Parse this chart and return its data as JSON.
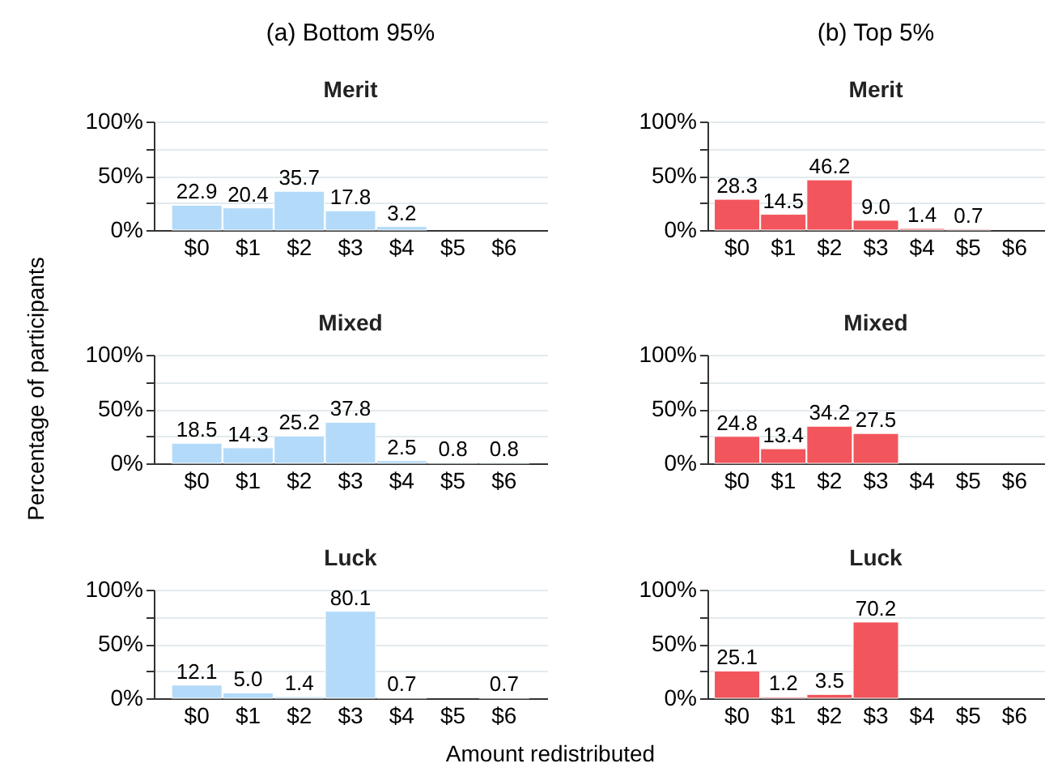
{
  "chart_data": [
    {
      "type": "bar",
      "title": "Merit",
      "annotations": [
        "(a) Bottom 95%"
      ],
      "categories": [
        "$0",
        "$1",
        "$2",
        "$3",
        "$4",
        "$5",
        "$6"
      ],
      "values": [
        22.9,
        20.4,
        35.7,
        17.8,
        3.2,
        null,
        null
      ],
      "color": "#b3dbf9",
      "data_labels": true,
      "ylim": [
        0,
        100
      ],
      "yticks": [
        {
          "value": 0,
          "label": "0%"
        },
        {
          "value": 25,
          "label": null
        },
        {
          "value": 50,
          "label": "50%"
        },
        {
          "value": 75,
          "label": null
        },
        {
          "value": 100,
          "label": "100%"
        }
      ],
      "grid": "y"
    },
    {
      "type": "bar",
      "title": "Merit",
      "annotations": [
        "(b) Top 5%"
      ],
      "categories": [
        "$0",
        "$1",
        "$2",
        "$3",
        "$4",
        "$5",
        "$6"
      ],
      "values": [
        28.3,
        14.5,
        46.2,
        9.0,
        1.4,
        0.7,
        null
      ],
      "color": "#f2555c",
      "value_labels": [
        "28.3",
        "14.5",
        "46.2",
        "9.0",
        "1.4",
        "0.7",
        null
      ],
      "ylim": [
        0,
        100
      ],
      "yticks": [
        {
          "value": 0,
          "label": "0%"
        },
        {
          "value": 25,
          "label": null
        },
        {
          "value": 50,
          "label": "50%"
        },
        {
          "value": 75,
          "label": null
        },
        {
          "value": 100,
          "label": "100%"
        }
      ],
      "grid": "y"
    },
    {
      "type": "bar",
      "title": "Mixed",
      "ylabel": "Percentage of participants",
      "categories": [
        "$0",
        "$1",
        "$2",
        "$3",
        "$4",
        "$5",
        "$6"
      ],
      "values": [
        18.5,
        14.3,
        25.2,
        37.8,
        2.5,
        0.8,
        0.8
      ],
      "color": "#b3dbf9",
      "data_labels": true,
      "ylim": [
        0,
        100
      ],
      "yticks": [
        {
          "value": 0,
          "label": "0%"
        },
        {
          "value": 25,
          "label": null
        },
        {
          "value": 50,
          "label": "50%"
        },
        {
          "value": 75,
          "label": null
        },
        {
          "value": 100,
          "label": "100%"
        }
      ],
      "grid": "y"
    },
    {
      "type": "bar",
      "title": "Mixed",
      "categories": [
        "$0",
        "$1",
        "$2",
        "$3",
        "$4",
        "$5",
        "$6"
      ],
      "values": [
        24.8,
        13.4,
        34.2,
        27.5,
        null,
        null,
        null
      ],
      "color": "#f2555c",
      "data_labels": true,
      "ylim": [
        0,
        100
      ],
      "yticks": [
        {
          "value": 0,
          "label": "0%"
        },
        {
          "value": 25,
          "label": null
        },
        {
          "value": 50,
          "label": "50%"
        },
        {
          "value": 75,
          "label": null
        },
        {
          "value": 100,
          "label": "100%"
        }
      ],
      "grid": "y"
    },
    {
      "type": "bar",
      "title": "Luck",
      "xlabel": "Amount redistributed",
      "categories": [
        "$0",
        "$1",
        "$2",
        "$3",
        "$4",
        "$5",
        "$6"
      ],
      "values": [
        12.1,
        5.0,
        1.4,
        80.1,
        0.7,
        null,
        0.7
      ],
      "color": "#b3dbf9",
      "value_labels": [
        "12.1",
        "5.0",
        "1.4",
        "80.1",
        "0.7",
        null,
        "0.7"
      ],
      "ylim": [
        0,
        100
      ],
      "yticks": [
        {
          "value": 0,
          "label": "0%"
        },
        {
          "value": 25,
          "label": null
        },
        {
          "value": 50,
          "label": "50%"
        },
        {
          "value": 75,
          "label": null
        },
        {
          "value": 100,
          "label": "100%"
        }
      ],
      "grid": "y"
    },
    {
      "type": "bar",
      "title": "Luck",
      "categories": [
        "$0",
        "$1",
        "$2",
        "$3",
        "$4",
        "$5",
        "$6"
      ],
      "values": [
        25.1,
        1.2,
        3.5,
        70.2,
        null,
        null,
        null
      ],
      "color": "#f2555c",
      "data_labels": true,
      "ylim": [
        0,
        100
      ],
      "yticks": [
        {
          "value": 0,
          "label": "0%"
        },
        {
          "value": 25,
          "label": null
        },
        {
          "value": 50,
          "label": "50%"
        },
        {
          "value": 75,
          "label": null
        },
        {
          "value": 100,
          "label": "100%"
        }
      ],
      "grid": "y"
    }
  ]
}
